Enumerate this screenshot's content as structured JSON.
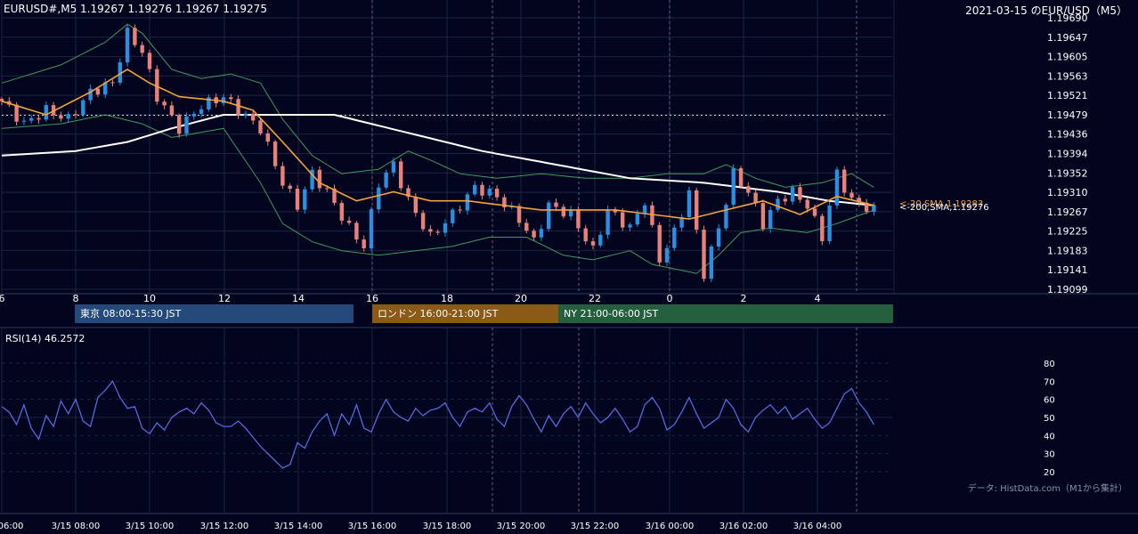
{
  "header": {
    "symbol_info": "EURUSD#,M5 1.19267 1.19276 1.19267 1.19275",
    "chart_title": "2021-03-15 のEUR/USD（M5）"
  },
  "colors": {
    "background": "#03051e",
    "candle_up": "#2a8fe0",
    "candle_down": "#e8817a",
    "sma200": "#ffffff",
    "sma20": "#f5a13c",
    "bollinger": "#3c9a5c",
    "rsi": "#5a6ff0",
    "session_tokyo": "#234a7a",
    "session_london": "#8a5a16",
    "session_ny": "#25603e"
  },
  "sessions": {
    "tokyo": "東京 08:00-15:30 JST",
    "london": "ロンドン 16:00-21:00 JST",
    "ny": "NY 21:00-06:00 JST"
  },
  "price_labels": {
    "sma20": "<-20,SMA,1.19283",
    "sma200": "<-200,SMA,1.19276"
  },
  "rsi_label": "RSI(14) 46.2572",
  "footer_note": "データ: HistData.com（M1から集計）",
  "chart_data": [
    {
      "type": "candlestick",
      "x_hour_labels": [
        "6",
        "8",
        "10",
        "12",
        "14",
        "16",
        "18",
        "20",
        "22",
        "0",
        "2",
        "4"
      ],
      "y_ticks": [
        "1.19690",
        "1.19647",
        "1.19605",
        "1.19563",
        "1.19521",
        "1.19479",
        "1.19436",
        "1.19394",
        "1.19352",
        "1.19310",
        "1.19267",
        "1.19225",
        "1.19183",
        "1.19141",
        "1.19099"
      ],
      "ylim": [
        1.19099,
        1.1969
      ],
      "reference_price": 1.19479,
      "close_path": [
        [
          0,
          1.1951
        ],
        [
          3,
          1.1946
        ],
        [
          6,
          1.1949
        ],
        [
          9,
          1.1947
        ],
        [
          12,
          1.1953
        ],
        [
          15,
          1.1955
        ],
        [
          17,
          1.1966
        ],
        [
          19,
          1.1962
        ],
        [
          21,
          1.1952
        ],
        [
          24,
          1.1945
        ],
        [
          27,
          1.195
        ],
        [
          30,
          1.1952
        ],
        [
          32,
          1.1949
        ],
        [
          35,
          1.1945
        ],
        [
          38,
          1.1933
        ],
        [
          40,
          1.1928
        ],
        [
          42,
          1.1935
        ],
        [
          44,
          1.1931
        ],
        [
          47,
          1.1923
        ],
        [
          49,
          1.1919
        ],
        [
          51,
          1.1933
        ],
        [
          53,
          1.1937
        ],
        [
          55,
          1.1929
        ],
        [
          58,
          1.1921
        ],
        [
          61,
          1.1926
        ],
        [
          64,
          1.1932
        ],
        [
          67,
          1.193
        ],
        [
          70,
          1.1925
        ],
        [
          72,
          1.192
        ],
        [
          74,
          1.1928
        ],
        [
          77,
          1.1926
        ],
        [
          80,
          1.1918
        ],
        [
          82,
          1.1927
        ],
        [
          85,
          1.1923
        ],
        [
          87,
          1.1929
        ],
        [
          89,
          1.1916
        ],
        [
          91,
          1.1922
        ],
        [
          93,
          1.1931
        ],
        [
          95,
          1.1913
        ],
        [
          97,
          1.1923
        ],
        [
          99,
          1.1935
        ],
        [
          101,
          1.1931
        ],
        [
          103,
          1.1924
        ],
        [
          105,
          1.1929
        ],
        [
          107,
          1.1931
        ],
        [
          109,
          1.1928
        ],
        [
          111,
          1.1921
        ],
        [
          113,
          1.1935
        ],
        [
          115,
          1.1929
        ],
        [
          118,
          1.1927
        ]
      ],
      "sma20_path": [
        [
          0,
          1.1951
        ],
        [
          6,
          1.1948
        ],
        [
          12,
          1.1953
        ],
        [
          17,
          1.1958
        ],
        [
          20,
          1.1955
        ],
        [
          24,
          1.1952
        ],
        [
          30,
          1.1951
        ],
        [
          34,
          1.1949
        ],
        [
          38,
          1.1942
        ],
        [
          43,
          1.1933
        ],
        [
          48,
          1.1929
        ],
        [
          53,
          1.1931
        ],
        [
          58,
          1.1929
        ],
        [
          63,
          1.1929
        ],
        [
          68,
          1.1928
        ],
        [
          73,
          1.1927
        ],
        [
          78,
          1.1927
        ],
        [
          83,
          1.1927
        ],
        [
          88,
          1.1926
        ],
        [
          93,
          1.1925
        ],
        [
          98,
          1.1927
        ],
        [
          103,
          1.1929
        ],
        [
          108,
          1.1926
        ],
        [
          113,
          1.193
        ],
        [
          118,
          1.1928
        ]
      ],
      "sma200_path": [
        [
          0,
          1.1939
        ],
        [
          10,
          1.194
        ],
        [
          17,
          1.1942
        ],
        [
          23,
          1.1945
        ],
        [
          30,
          1.1948
        ],
        [
          37,
          1.1948
        ],
        [
          45,
          1.1948
        ],
        [
          55,
          1.1944
        ],
        [
          65,
          1.194
        ],
        [
          75,
          1.1937
        ],
        [
          85,
          1.1934
        ],
        [
          95,
          1.1933
        ],
        [
          105,
          1.1931
        ],
        [
          112,
          1.1929
        ],
        [
          118,
          1.1928
        ]
      ],
      "bb_upper_path": [
        [
          0,
          1.1955
        ],
        [
          8,
          1.1959
        ],
        [
          14,
          1.1964
        ],
        [
          17,
          1.1968
        ],
        [
          19,
          1.1966
        ],
        [
          23,
          1.1958
        ],
        [
          27,
          1.1956
        ],
        [
          31,
          1.1957
        ],
        [
          35,
          1.1955
        ],
        [
          38,
          1.1947
        ],
        [
          42,
          1.1939
        ],
        [
          46,
          1.1935
        ],
        [
          51,
          1.1936
        ],
        [
          55,
          1.194
        ],
        [
          58,
          1.1938
        ],
        [
          62,
          1.1935
        ],
        [
          67,
          1.1934
        ],
        [
          73,
          1.1935
        ],
        [
          79,
          1.1934
        ],
        [
          85,
          1.1934
        ],
        [
          90,
          1.1935
        ],
        [
          95,
          1.1935
        ],
        [
          98,
          1.1937
        ],
        [
          102,
          1.1934
        ],
        [
          106,
          1.1932
        ],
        [
          111,
          1.1933
        ],
        [
          115,
          1.1935
        ],
        [
          118,
          1.1932
        ]
      ],
      "bb_lower_path": [
        [
          0,
          1.1945
        ],
        [
          8,
          1.1946
        ],
        [
          14,
          1.1948
        ],
        [
          19,
          1.1946
        ],
        [
          23,
          1.1943
        ],
        [
          30,
          1.1945
        ],
        [
          35,
          1.1933
        ],
        [
          38,
          1.1924
        ],
        [
          42,
          1.192
        ],
        [
          46,
          1.1918
        ],
        [
          51,
          1.1917
        ],
        [
          56,
          1.1918
        ],
        [
          61,
          1.1919
        ],
        [
          66,
          1.1921
        ],
        [
          71,
          1.1921
        ],
        [
          76,
          1.1917
        ],
        [
          80,
          1.1916
        ],
        [
          85,
          1.1918
        ],
        [
          88,
          1.1915
        ],
        [
          91,
          1.1914
        ],
        [
          94,
          1.1913
        ],
        [
          97,
          1.1917
        ],
        [
          100,
          1.1922
        ],
        [
          104,
          1.1923
        ],
        [
          109,
          1.1922
        ],
        [
          113,
          1.1924
        ],
        [
          118,
          1.1927
        ]
      ]
    },
    {
      "type": "line",
      "name": "RSI(14)",
      "y_ticks": [
        "80",
        "70",
        "60",
        "50",
        "40",
        "30",
        "20"
      ],
      "ylim": [
        20,
        80
      ],
      "x_time_labels": [
        "06:00",
        "3/15 08:00",
        "3/15 10:00",
        "3/15 12:00",
        "3/15 14:00",
        "3/15 16:00",
        "3/15 18:00",
        "3/15 20:00",
        "3/15 22:00",
        "3/16 00:00",
        "3/16 02:00",
        "3/16 04:00"
      ],
      "rsi_path": [
        [
          0,
          56
        ],
        [
          1,
          53
        ],
        [
          2,
          46
        ],
        [
          3,
          57
        ],
        [
          4,
          44
        ],
        [
          5,
          38
        ],
        [
          6,
          51
        ],
        [
          7,
          45
        ],
        [
          8,
          59
        ],
        [
          9,
          52
        ],
        [
          10,
          60
        ],
        [
          11,
          48
        ],
        [
          12,
          45
        ],
        [
          13,
          61
        ],
        [
          14,
          65
        ],
        [
          15,
          70
        ],
        [
          16,
          61
        ],
        [
          17,
          55
        ],
        [
          18,
          56
        ],
        [
          19,
          44
        ],
        [
          20,
          41
        ],
        [
          21,
          47
        ],
        [
          22,
          43
        ],
        [
          23,
          50
        ],
        [
          24,
          53
        ],
        [
          25,
          55
        ],
        [
          26,
          52
        ],
        [
          27,
          58
        ],
        [
          28,
          54
        ],
        [
          29,
          47
        ],
        [
          30,
          45
        ],
        [
          31,
          45
        ],
        [
          32,
          48
        ],
        [
          33,
          44
        ],
        [
          34,
          39
        ],
        [
          35,
          34
        ],
        [
          36,
          30
        ],
        [
          37,
          26
        ],
        [
          38,
          22
        ],
        [
          39,
          24
        ],
        [
          40,
          36
        ],
        [
          41,
          33
        ],
        [
          42,
          42
        ],
        [
          43,
          48
        ],
        [
          44,
          52
        ],
        [
          45,
          40
        ],
        [
          46,
          52
        ],
        [
          47,
          46
        ],
        [
          48,
          57
        ],
        [
          49,
          44
        ],
        [
          50,
          42
        ],
        [
          51,
          52
        ],
        [
          52,
          60
        ],
        [
          53,
          53
        ],
        [
          54,
          50
        ],
        [
          55,
          48
        ],
        [
          56,
          55
        ],
        [
          57,
          51
        ],
        [
          58,
          54
        ],
        [
          59,
          55
        ],
        [
          60,
          58
        ],
        [
          61,
          50
        ],
        [
          62,
          45
        ],
        [
          63,
          53
        ],
        [
          64,
          55
        ],
        [
          65,
          53
        ],
        [
          66,
          58
        ],
        [
          67,
          49
        ],
        [
          68,
          45
        ],
        [
          69,
          56
        ],
        [
          70,
          62
        ],
        [
          71,
          57
        ],
        [
          72,
          49
        ],
        [
          73,
          42
        ],
        [
          74,
          51
        ],
        [
          75,
          45
        ],
        [
          76,
          52
        ],
        [
          77,
          56
        ],
        [
          78,
          50
        ],
        [
          79,
          58
        ],
        [
          80,
          52
        ],
        [
          81,
          47
        ],
        [
          82,
          50
        ],
        [
          83,
          55
        ],
        [
          84,
          49
        ],
        [
          85,
          42
        ],
        [
          86,
          45
        ],
        [
          87,
          57
        ],
        [
          88,
          61
        ],
        [
          89,
          55
        ],
        [
          90,
          43
        ],
        [
          91,
          46
        ],
        [
          92,
          53
        ],
        [
          93,
          61
        ],
        [
          94,
          52
        ],
        [
          95,
          44
        ],
        [
          96,
          47
        ],
        [
          97,
          50
        ],
        [
          98,
          60
        ],
        [
          99,
          55
        ],
        [
          100,
          46
        ],
        [
          101,
          42
        ],
        [
          102,
          50
        ],
        [
          103,
          54
        ],
        [
          104,
          57
        ],
        [
          105,
          52
        ],
        [
          106,
          56
        ],
        [
          107,
          49
        ],
        [
          108,
          52
        ],
        [
          109,
          55
        ],
        [
          110,
          49
        ],
        [
          111,
          44
        ],
        [
          112,
          47
        ],
        [
          113,
          55
        ],
        [
          114,
          63
        ],
        [
          115,
          66
        ],
        [
          116,
          58
        ],
        [
          117,
          53
        ],
        [
          118,
          46
        ]
      ]
    }
  ]
}
